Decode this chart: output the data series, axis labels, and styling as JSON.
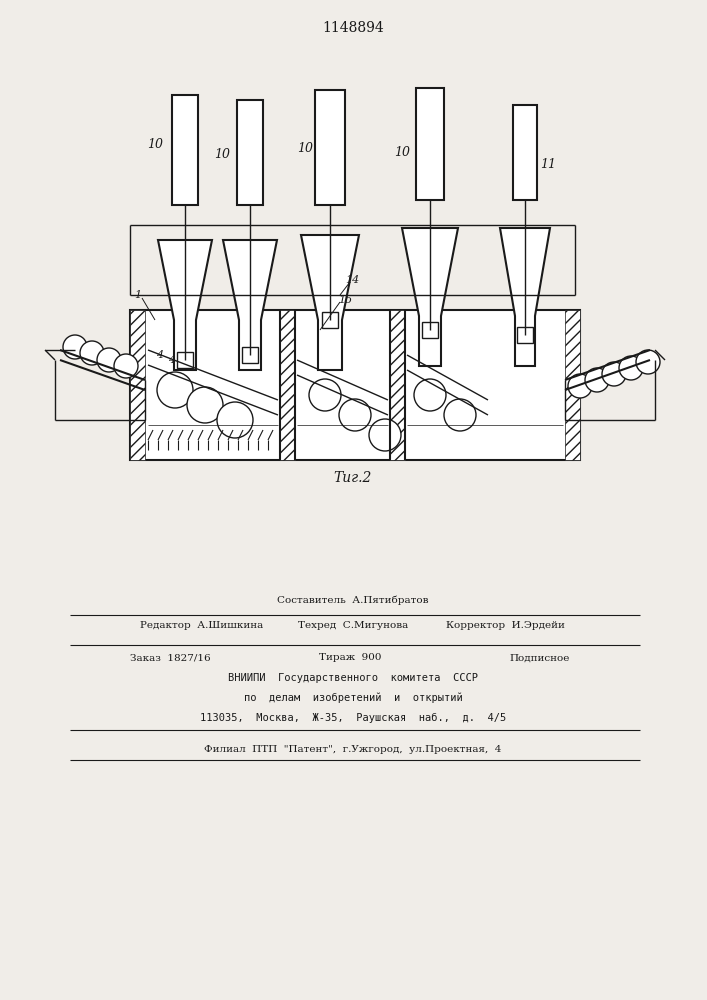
{
  "title_number": "1148894",
  "fig_label": "Τиг.2",
  "bg_color": "#f0ede8",
  "line_color": "#1a1a1a",
  "hatch_color": "#1a1a1a",
  "footer_lines": [
    "Составитель  А.Пятибратов",
    "Редактор  А.Шишкина    Техред  С.Мигунова      Корректор  И.Эрдейи",
    "Заказ  1827/16        Тираж  900           Подписное",
    "ВНИИПИ  Государственного  комитета  СССР",
    "по  делам  изобретений  и  открытий",
    "113035,  Москва,  Ж-35,  Раушская  наб.,  д.  4/5",
    "Филиал  ППП  “Патент”,  г.Ужгород,  ул.Проектная,  4"
  ]
}
